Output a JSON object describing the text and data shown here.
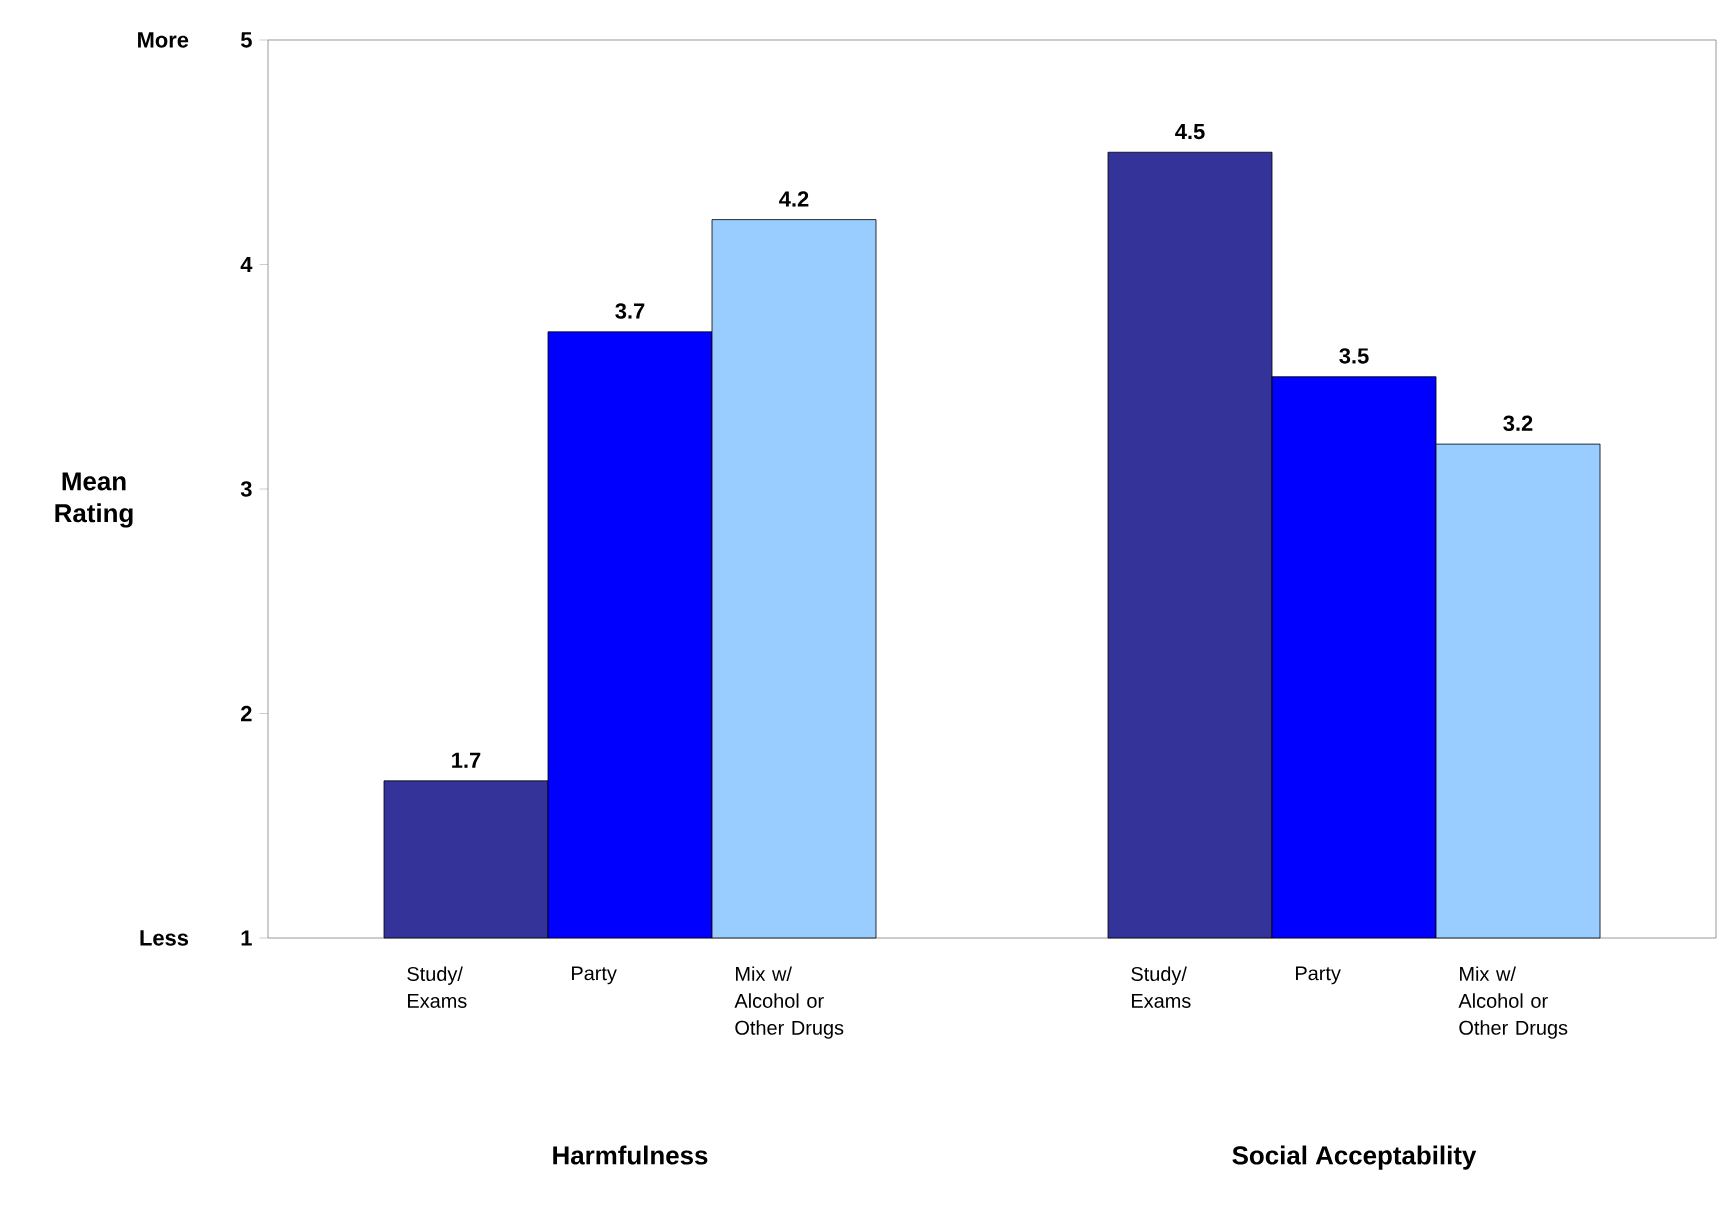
{
  "chart_data": {
    "type": "bar",
    "ylabel": "Mean Rating",
    "categories": [
      "Harmfulness",
      "Social Acceptability"
    ],
    "series": [
      {
        "name": "Study/ Exams",
        "color": "#333399",
        "values": [
          1.7,
          4.5
        ]
      },
      {
        "name": "Party",
        "color": "#0000ff",
        "values": [
          3.7,
          3.5
        ]
      },
      {
        "name": "Mix w/ Alcohol or Other Drugs",
        "color": "#99ccff",
        "values": [
          4.2,
          3.2
        ]
      }
    ],
    "ylim": [
      1,
      5
    ],
    "yticks": [
      1,
      2,
      3,
      4,
      5
    ],
    "data_labels": true,
    "grid": false,
    "annotations": [
      "More",
      "Less"
    ]
  }
}
